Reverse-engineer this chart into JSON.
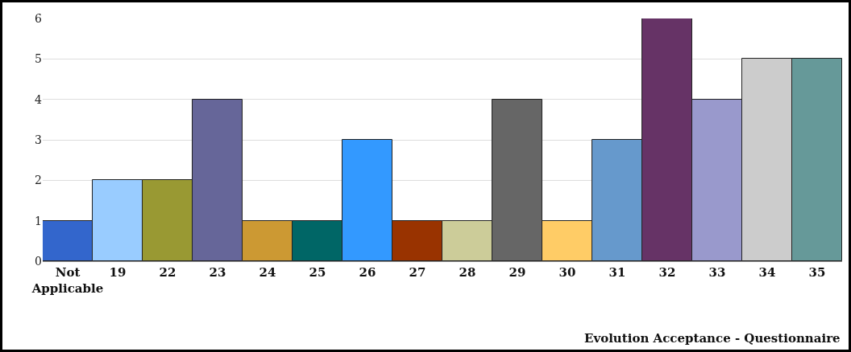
{
  "chart_data": {
    "type": "bar",
    "xlabel": "Evolution Acceptance - Questionnaire",
    "categories": [
      "Not Applicable",
      "19",
      "22",
      "23",
      "24",
      "25",
      "26",
      "27",
      "28",
      "29",
      "30",
      "31",
      "32",
      "33",
      "34",
      "35"
    ],
    "values": [
      1,
      2,
      2,
      4,
      1,
      1,
      3,
      1,
      1,
      4,
      1,
      3,
      6,
      4,
      5,
      5
    ],
    "colors": [
      "#3366cc",
      "#99ccff",
      "#999933",
      "#666699",
      "#cc9933",
      "#006666",
      "#3399ff",
      "#993300",
      "#cccc99",
      "#666666",
      "#ffcc66",
      "#6699cc",
      "#663366",
      "#9999cc",
      "#cccccc",
      "#669999"
    ],
    "ylim": [
      0,
      6
    ],
    "yticks": [
      0,
      1,
      2,
      3,
      4,
      5,
      6
    ],
    "grid": "y"
  }
}
